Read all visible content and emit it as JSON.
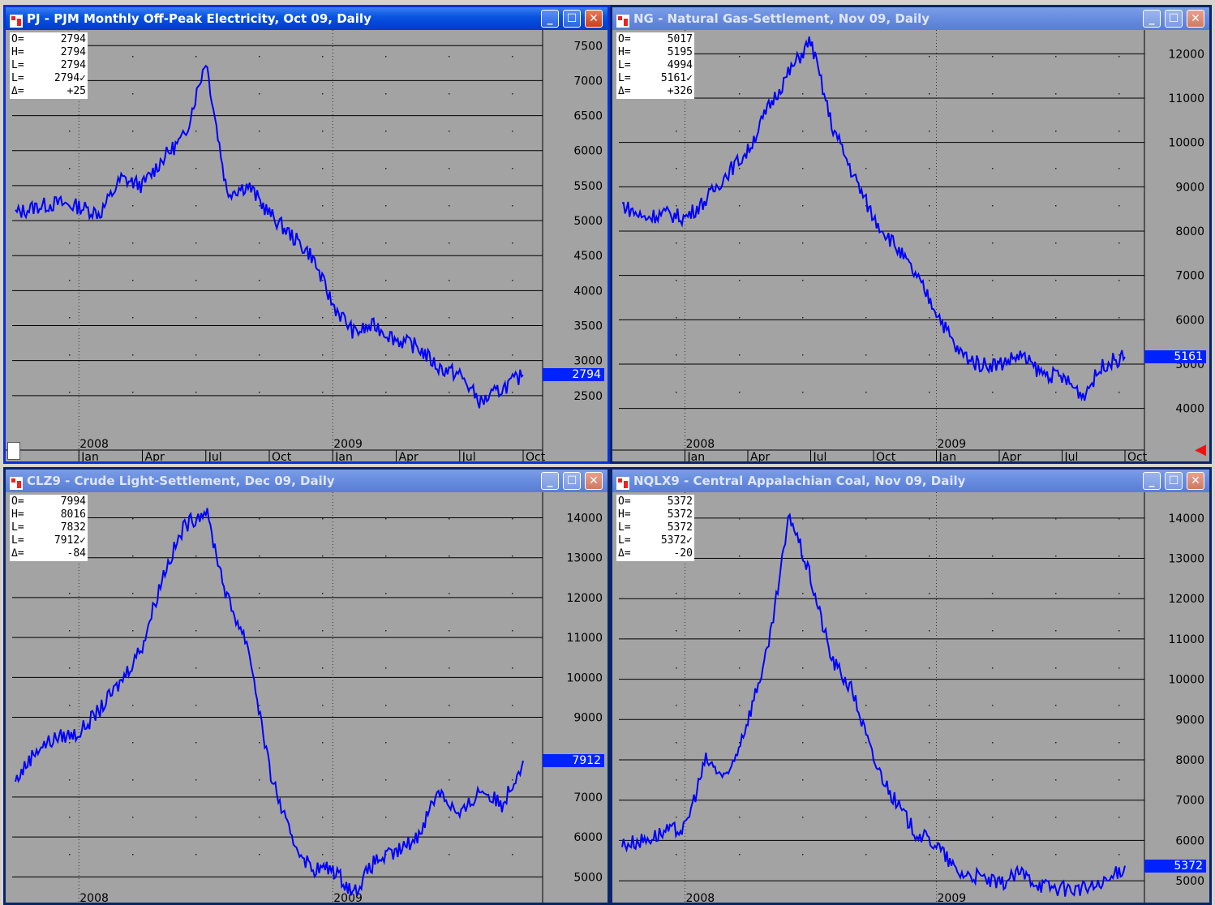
{
  "windows": [
    {
      "id": "pj",
      "title": "PJ - PJM Monthly Off-Peak Electricity, Oct 09, Daily",
      "ohlc": [
        [
          "O=",
          "2794"
        ],
        [
          "H=",
          "2794"
        ],
        [
          "L=",
          "2794"
        ],
        [
          "L=",
          "2794✓"
        ],
        [
          "Δ=",
          "+25"
        ]
      ],
      "last_price": "2794",
      "year_labels": [
        "2008",
        "2009"
      ],
      "month_labels": [
        "Jan",
        "Apr",
        "Jul",
        "Oct",
        "Jan",
        "Apr",
        "Jul",
        "Oct"
      ],
      "yticks": [
        "7500",
        "7000",
        "6500",
        "6000",
        "5500",
        "5000",
        "4500",
        "4000",
        "3500",
        "3000",
        "2500"
      ],
      "line_color": "#0000ff"
    },
    {
      "id": "ng",
      "title": "NG - Natural Gas-Settlement, Nov 09, Daily",
      "ohlc": [
        [
          "O=",
          "5017"
        ],
        [
          "H=",
          "5195"
        ],
        [
          "L=",
          "4994"
        ],
        [
          "L=",
          "5161✓"
        ],
        [
          "Δ=",
          "+326"
        ]
      ],
      "last_price": "5161",
      "year_labels": [
        "2008",
        "2009"
      ],
      "month_labels": [
        "Jan",
        "Apr",
        "Jul",
        "Oct",
        "Jan",
        "Apr",
        "Jul",
        "Oct"
      ],
      "yticks": [
        "12000",
        "11000",
        "10000",
        "9000",
        "8000",
        "7000",
        "6000",
        "5000",
        "4000"
      ],
      "line_color": "#0000ff"
    },
    {
      "id": "clz9",
      "title": "CLZ9 - Crude Light-Settlement, Dec 09, Daily",
      "ohlc": [
        [
          "O=",
          "7994"
        ],
        [
          "H=",
          "8016"
        ],
        [
          "L=",
          "7832"
        ],
        [
          "L=",
          "7912✓"
        ],
        [
          "Δ=",
          "-84"
        ]
      ],
      "last_price": "7912",
      "year_labels": [
        "2008",
        "2009"
      ],
      "month_labels": [],
      "yticks": [
        "14000",
        "13000",
        "12000",
        "11000",
        "10000",
        "9000",
        "7000",
        "6000",
        "5000"
      ],
      "line_color": "#0000ff"
    },
    {
      "id": "nqlx9",
      "title": "NQLX9 - Central Appalachian Coal, Nov 09, Daily",
      "ohlc": [
        [
          "O=",
          "5372"
        ],
        [
          "H=",
          "5372"
        ],
        [
          "L=",
          "5372"
        ],
        [
          "L=",
          "5372✓"
        ],
        [
          "Δ=",
          "-20"
        ]
      ],
      "last_price": "5372",
      "year_labels": [
        "2008",
        "2009"
      ],
      "month_labels": [],
      "yticks": [
        "14000",
        "13000",
        "12000",
        "11000",
        "10000",
        "9000",
        "8000",
        "7000",
        "6000",
        "5000"
      ],
      "line_color": "#0000ff"
    }
  ],
  "chart_data": [
    {
      "type": "line",
      "title": "PJ - PJM Monthly Off-Peak Electricity, Oct 09, Daily",
      "x": [
        "2007-10",
        "2007-11",
        "2007-12",
        "2008-01",
        "2008-02",
        "2008-03",
        "2008-04",
        "2008-05",
        "2008-06",
        "2008-07",
        "2008-08",
        "2008-09",
        "2008-10",
        "2008-11",
        "2008-12",
        "2009-01",
        "2009-02",
        "2009-03",
        "2009-04",
        "2009-05",
        "2009-06",
        "2009-07",
        "2009-08",
        "2009-09",
        "2009-10"
      ],
      "series": [
        {
          "values": [
            5100,
            5200,
            5250,
            5200,
            5100,
            5600,
            5500,
            5900,
            6200,
            7300,
            5400,
            5500,
            5100,
            4800,
            4500,
            3800,
            3400,
            3500,
            3300,
            3200,
            2900,
            2800,
            2400,
            2600,
            2794
          ]
        }
      ],
      "ylim": [
        2000,
        7700
      ]
    },
    {
      "type": "line",
      "title": "NG - Natural Gas-Settlement, Nov 09, Daily",
      "x": [
        "2007-10",
        "2007-11",
        "2007-12",
        "2008-01",
        "2008-02",
        "2008-03",
        "2008-04",
        "2008-05",
        "2008-06",
        "2008-07",
        "2008-08",
        "2008-09",
        "2008-10",
        "2008-11",
        "2008-12",
        "2009-01",
        "2009-02",
        "2009-03",
        "2009-04",
        "2009-05",
        "2009-06",
        "2009-07",
        "2009-08",
        "2009-09",
        "2009-10"
      ],
      "series": [
        {
          "values": [
            8600,
            8300,
            8400,
            8300,
            8700,
            9300,
            9800,
            10800,
            11600,
            12300,
            10400,
            9300,
            8300,
            7700,
            7000,
            6200,
            5300,
            5000,
            5000,
            5200,
            4800,
            4700,
            4300,
            5000,
            5161
          ]
        }
      ],
      "ylim": [
        3500,
        12500
      ]
    },
    {
      "type": "line",
      "title": "CLZ9 - Crude Light-Settlement, Dec 09, Daily",
      "x": [
        "2007-10",
        "2007-11",
        "2007-12",
        "2008-01",
        "2008-02",
        "2008-03",
        "2008-04",
        "2008-05",
        "2008-06",
        "2008-07",
        "2008-08",
        "2008-09",
        "2008-10",
        "2008-11",
        "2008-12",
        "2009-01",
        "2009-02",
        "2009-03",
        "2009-04",
        "2009-05",
        "2009-06",
        "2009-07",
        "2009-08",
        "2009-09",
        "2009-10"
      ],
      "series": [
        {
          "values": [
            7400,
            8200,
            8500,
            8600,
            9200,
            9900,
            10800,
            12600,
            13800,
            14200,
            12000,
            10800,
            7700,
            6000,
            5200,
            5200,
            4600,
            5400,
            5600,
            6000,
            7200,
            6500,
            7200,
            6800,
            7912
          ]
        }
      ],
      "ylim": [
        4600,
        14600
      ]
    },
    {
      "type": "line",
      "title": "NQLX9 - Central Appalachian Coal, Nov 09, Daily",
      "x": [
        "2007-10",
        "2007-11",
        "2007-12",
        "2008-01",
        "2008-02",
        "2008-03",
        "2008-04",
        "2008-05",
        "2008-06",
        "2008-07",
        "2008-08",
        "2008-09",
        "2008-10",
        "2008-11",
        "2008-12",
        "2009-01",
        "2009-02",
        "2009-03",
        "2009-04",
        "2009-05",
        "2009-06",
        "2009-07",
        "2009-08",
        "2009-09",
        "2009-10"
      ],
      "series": [
        {
          "values": [
            5900,
            6000,
            6200,
            6300,
            8000,
            7500,
            9000,
            10800,
            14100,
            12500,
            10500,
            9700,
            8000,
            7000,
            6200,
            5900,
            5200,
            5100,
            4900,
            5200,
            4900,
            4800,
            4800,
            4900,
            5372
          ]
        }
      ],
      "ylim": [
        4700,
        14600
      ]
    }
  ]
}
